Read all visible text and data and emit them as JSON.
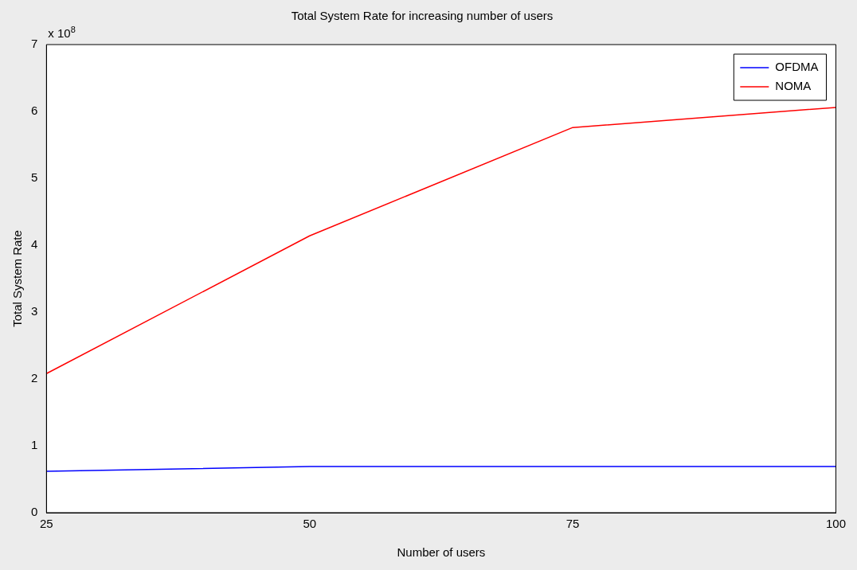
{
  "chart_data": {
    "type": "line",
    "title": "Total System Rate for increasing number of users",
    "xlabel": "Number of users",
    "ylabel": "Total System Rate",
    "x": [
      25,
      50,
      75,
      100
    ],
    "series": [
      {
        "name": "OFDMA",
        "color": "#0000ff",
        "values": [
          0.62,
          0.69,
          0.69,
          0.69
        ]
      },
      {
        "name": "NOMA",
        "color": "#ff0000",
        "values": [
          2.08,
          4.14,
          5.76,
          6.06
        ]
      }
    ],
    "xlim": [
      25,
      100
    ],
    "xticks": [
      25,
      50,
      75,
      100
    ],
    "ylim": [
      0,
      7
    ],
    "yticks": [
      0,
      1,
      2,
      3,
      4,
      5,
      6,
      7
    ],
    "annotations": [
      "x 10$^{8}$"
    ],
    "grid": false,
    "legend": "top right",
    "marker": "none",
    "line_style": "solid"
  }
}
